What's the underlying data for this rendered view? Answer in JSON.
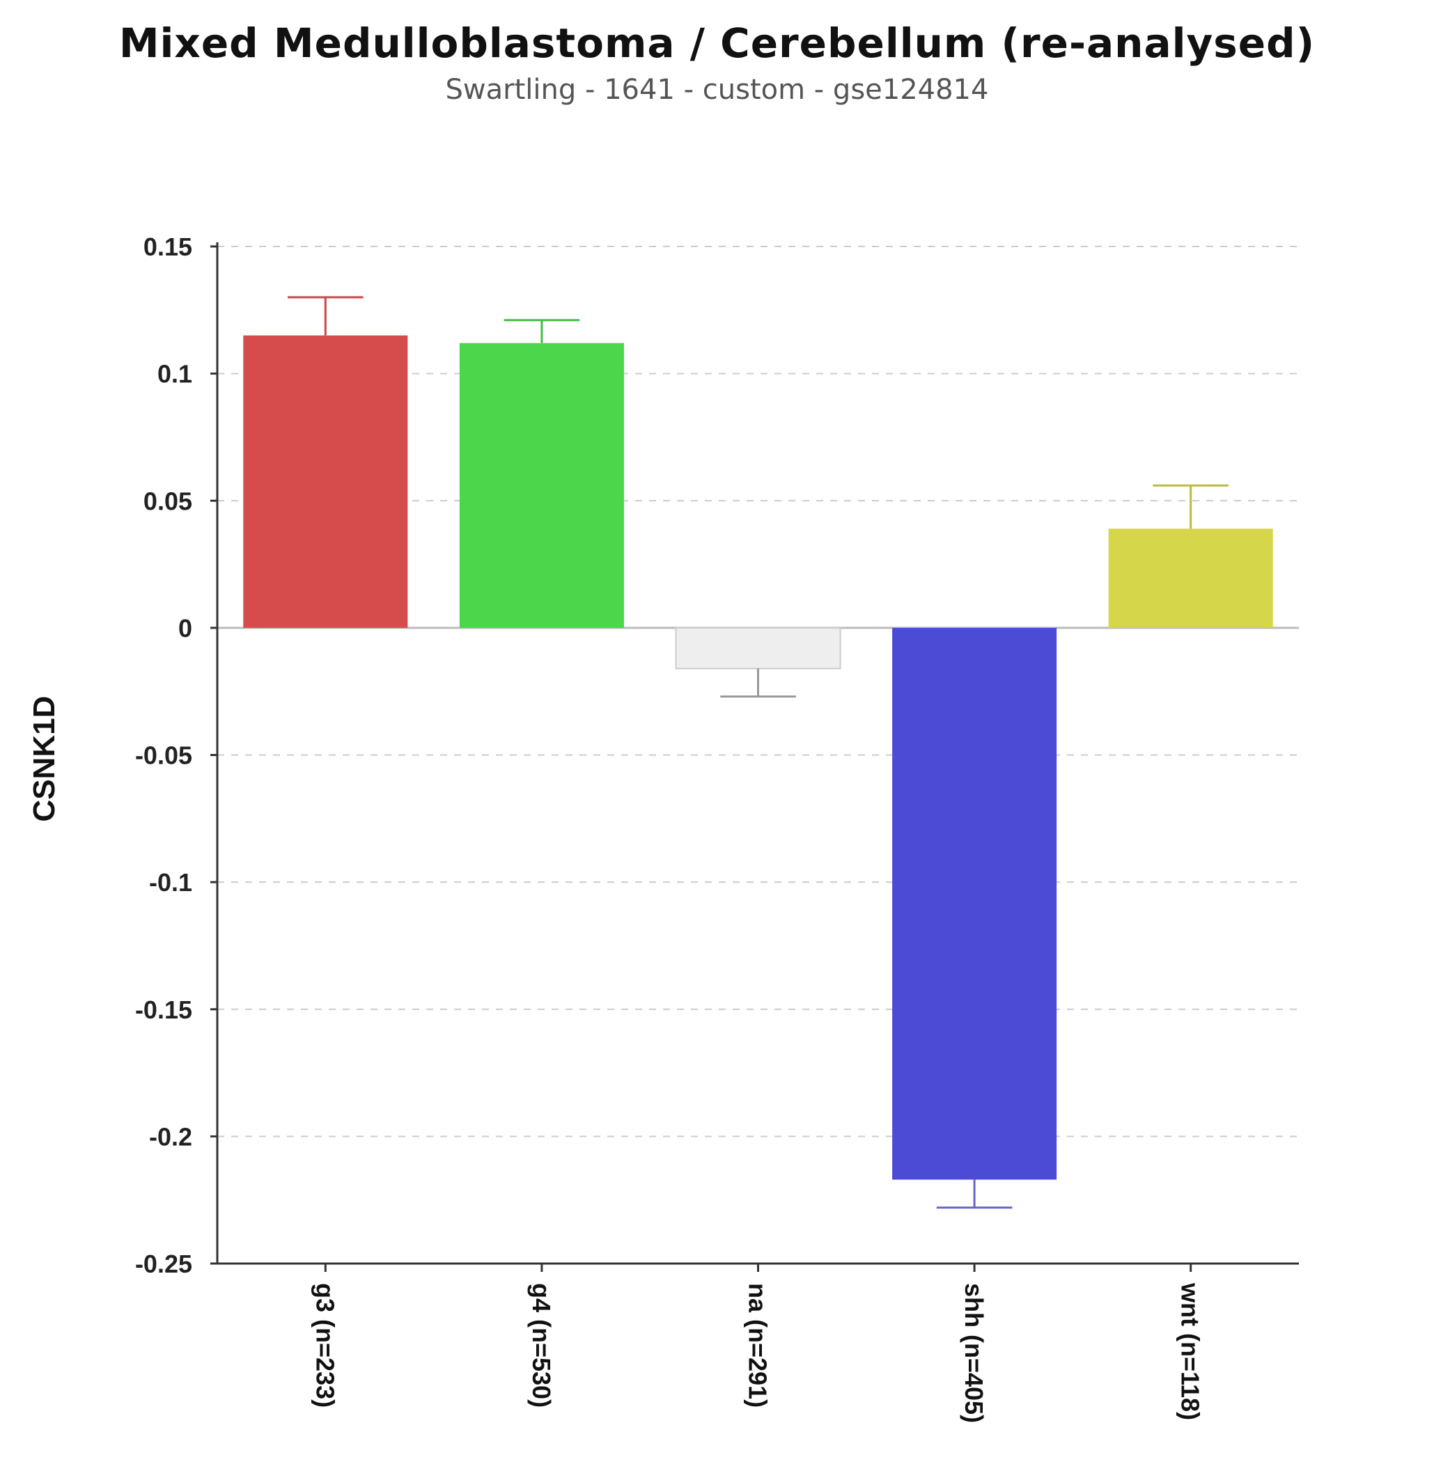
{
  "chart_data": {
    "type": "bar",
    "title": "Mixed Medulloblastoma / Cerebellum (re-analysed)",
    "subtitle": "Swartling - 1641 - custom - gse124814",
    "xlabel": "",
    "ylabel": "CSNK1D",
    "ylim": [
      -0.25,
      0.15
    ],
    "yticks": [
      0.15,
      0.1,
      0.05,
      0,
      -0.05,
      -0.1,
      -0.15,
      -0.2,
      -0.25
    ],
    "ytick_labels": [
      "0.15",
      "0.1",
      "0.05",
      "0",
      "-0.05",
      "-0.1",
      "-0.15",
      "-0.2",
      "-0.25"
    ],
    "grid": true,
    "categories": [
      "g3 (n=233)",
      "g4 (n=530)",
      "na (n=291)",
      "shh (n=405)",
      "wnt (n=118)"
    ],
    "values": [
      0.115,
      0.112,
      -0.016,
      -0.217,
      0.039
    ],
    "errors": [
      0.015,
      0.009,
      0.011,
      0.011,
      0.017
    ],
    "colors": [
      "#d64b4b",
      "#4cd64c",
      "#eeeeee",
      "#4b4bd6",
      "#d6d64b"
    ],
    "error_colors": [
      "#c84848",
      "#44bb44",
      "#999999",
      "#6666cc",
      "#bbbb44"
    ]
  }
}
